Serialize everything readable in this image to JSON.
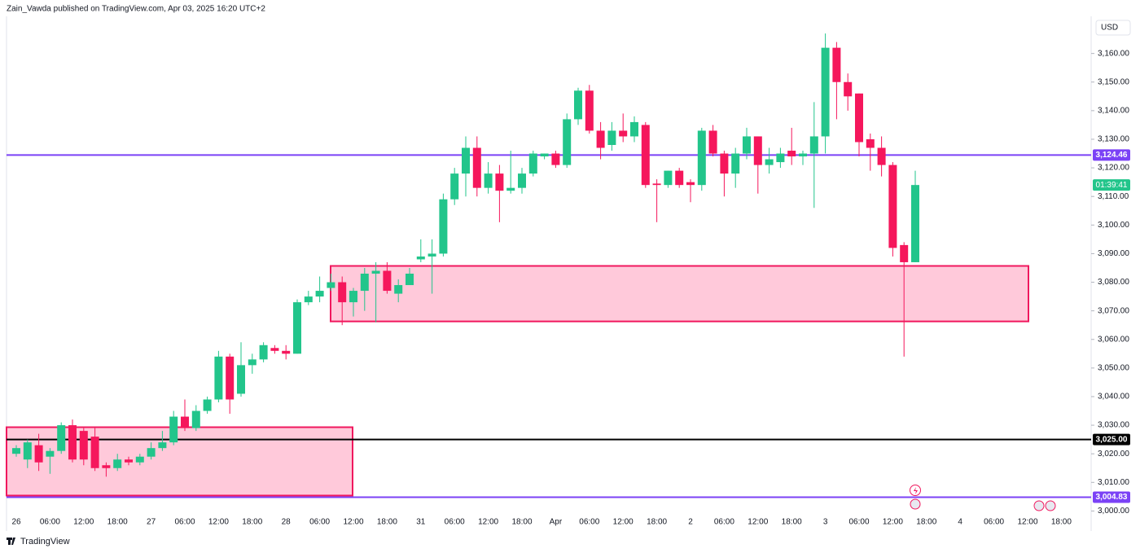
{
  "chart_data": {
    "type": "candlestick",
    "header": "Zain_Vawda published on TradingView.com, Apr 03, 2025 16:20 UTC+2",
    "currency": "USD",
    "brand": "TradingView",
    "countdown": "01:39:41",
    "up_color": "#22c58b",
    "down_color": "#f5175c",
    "categories": [
      "26",
      null,
      null,
      "06:00",
      null,
      null,
      "12:00",
      null,
      null,
      "18:00",
      null,
      null,
      "27",
      null,
      null,
      "06:00",
      null,
      null,
      "12:00",
      null,
      null,
      "18:00",
      null,
      null,
      "28",
      null,
      null,
      "06:00",
      null,
      null,
      "12:00",
      null,
      null,
      "18:00",
      null,
      null,
      "31",
      null,
      null,
      "06:00",
      null,
      null,
      "12:00",
      null,
      null,
      "18:00",
      null,
      null,
      "Apr",
      null,
      null,
      "06:00",
      null,
      null,
      "12:00",
      null,
      null,
      "18:00",
      null,
      null,
      "2",
      null,
      null,
      "06:00",
      null,
      null,
      "12:00",
      null,
      null,
      "18:00",
      null,
      null,
      "3",
      null,
      null,
      "06:00",
      null,
      null,
      "12:00",
      null,
      null,
      "18:00",
      null,
      null,
      "4",
      null,
      null,
      "06:00",
      null,
      null,
      "12:00",
      null,
      null,
      "18:00"
    ],
    "open": [
      3020,
      3018,
      3023,
      3019,
      3021,
      3030,
      3028,
      3026,
      3016,
      3015,
      3018,
      3017,
      3019,
      3022,
      3024,
      3033,
      3029,
      3035,
      3039,
      3054,
      3041,
      3051,
      3053,
      3057,
      3056,
      3055,
      3073,
      3075,
      3078,
      3080,
      3073,
      3077,
      3083,
      3084,
      3076,
      3079,
      3088,
      3089,
      3090,
      3109,
      3118,
      3127,
      3113,
      3118,
      3112,
      3113,
      3118,
      3124,
      3125,
      3121,
      3137,
      3147,
      3133,
      3128,
      3133,
      3131,
      3135,
      3114.5,
      3114,
      3119,
      3115,
      3114,
      3133,
      3125,
      3118,
      3125,
      3131,
      3121,
      3122,
      3126,
      3124,
      3125,
      3131,
      3162,
      3150,
      3146,
      3130,
      3127,
      3121,
      3093,
      3087,
      null,
      null,
      null,
      null,
      null,
      null,
      null,
      null,
      null,
      null,
      null,
      null,
      null
    ],
    "high": [
      3023,
      3025,
      3027,
      3022,
      3031,
      3032,
      3029,
      3029,
      3017,
      3020,
      3019,
      3020,
      3024,
      3028,
      3035,
      3039,
      3037,
      3040,
      3056,
      3055,
      3059,
      3055,
      3059,
      3058,
      3058,
      3074,
      3077,
      3082,
      3083,
      3082,
      3078,
      3085,
      3087,
      3087,
      3081,
      3085,
      3095,
      3095,
      3111,
      3120,
      3131,
      3131,
      3122,
      3121,
      3126,
      3120,
      3126,
      3125,
      3126,
      3139,
      3148,
      3149,
      3136,
      3136,
      3139,
      3138,
      3136,
      3116,
      3119,
      3120,
      3116,
      3134,
      3135,
      3126,
      3127,
      3134,
      3131,
      3127,
      3127,
      3134,
      3126,
      3143,
      3167,
      3164,
      3153,
      3146,
      3132,
      3131,
      3122,
      3094,
      3119,
      null,
      null,
      null,
      null,
      null,
      null,
      null,
      null,
      null,
      null,
      null,
      null,
      null
    ],
    "low": [
      3019,
      3015,
      3014,
      3013,
      3020,
      3017,
      3016,
      3014,
      3012,
      3014,
      3016,
      3016,
      3018,
      3021,
      3023,
      3028,
      3028,
      3034,
      3038,
      3034,
      3040,
      3048,
      3052,
      3055,
      3053,
      3055,
      3072,
      3073,
      3077,
      3065,
      3068,
      3070,
      3066,
      3076,
      3073,
      3079,
      3087,
      3076,
      3089,
      3107,
      3110,
      3110,
      3111,
      3101,
      3111,
      3111,
      3117,
      3123,
      3120,
      3120,
      3135,
      3132,
      3123,
      3126,
      3129,
      3129,
      3113,
      3101,
      3113,
      3113,
      3108,
      3112,
      3124,
      3110,
      3113,
      3123,
      3111,
      3118,
      3120,
      3121,
      3121,
      3106,
      3125,
      3137,
      3140,
      3124,
      3119,
      3117,
      3089,
      3054,
      3087,
      null,
      null,
      null,
      null,
      null,
      null,
      null,
      null,
      null,
      null,
      null,
      null,
      null
    ],
    "close": [
      3022,
      3024,
      3017,
      3021,
      3030,
      3018,
      3018,
      3015,
      3015,
      3018,
      3017,
      3019,
      3022,
      3024,
      3033,
      3029,
      3035,
      3039,
      3054,
      3039,
      3051,
      3053,
      3058,
      3056,
      3055,
      3073,
      3075,
      3077,
      3080,
      3073,
      3077,
      3083,
      3084,
      3077,
      3079,
      3083,
      3089,
      3090,
      3109,
      3118,
      3127,
      3113,
      3118,
      3112,
      3113,
      3118,
      3125,
      3125,
      3121,
      3137,
      3147,
      3133,
      3127,
      3133,
      3131,
      3136,
      3114,
      3114,
      3119,
      3114,
      3114,
      3133,
      3125,
      3118,
      3125,
      3131,
      3121,
      3123,
      3125,
      3124,
      3125,
      3131,
      3162,
      3150,
      3145,
      3129,
      3127,
      3121,
      3092,
      3087,
      3114,
      null,
      null,
      null,
      null,
      null,
      null,
      null,
      null,
      null,
      null,
      null,
      null,
      null
    ],
    "ylim": [
      2993,
      3173
    ],
    "yticks": [
      {
        "value": 3000,
        "label": "3,000.00"
      },
      {
        "value": 3010,
        "label": "3,010.00"
      },
      {
        "value": 3020,
        "label": "3,020.00"
      },
      {
        "value": 3030,
        "label": "3,030.00"
      },
      {
        "value": 3040,
        "label": "3,040.00"
      },
      {
        "value": 3050,
        "label": "3,050.00"
      },
      {
        "value": 3060,
        "label": "3,060.00"
      },
      {
        "value": 3070,
        "label": "3,070.00"
      },
      {
        "value": 3080,
        "label": "3,080.00"
      },
      {
        "value": 3090,
        "label": "3,090.00"
      },
      {
        "value": 3100,
        "label": "3,100.00"
      },
      {
        "value": 3110,
        "label": "3,110.00"
      },
      {
        "value": 3120,
        "label": "3,120.00"
      },
      {
        "value": 3130,
        "label": "3,130.00"
      },
      {
        "value": 3140,
        "label": "3,140.00"
      },
      {
        "value": 3150,
        "label": "3,150.00"
      },
      {
        "value": 3160,
        "label": "3,160.00"
      }
    ],
    "zones": [
      {
        "range": [
          3005.4,
          3029.3
        ],
        "color": "#f0185e",
        "fill": "#ffc9da"
      },
      {
        "range": [
          3066.3,
          3085.7
        ],
        "color": "#f0185e",
        "fill": "#ffc9da"
      }
    ],
    "price_lines": [
      {
        "value": 3124.46,
        "label": "3,124.46",
        "color": "#7b42f6"
      },
      {
        "value": 3025,
        "label": "3,025.00",
        "color": "#000000"
      },
      {
        "value": 3004.83,
        "label": "3,004.83",
        "color": "#7b42f6"
      }
    ]
  }
}
